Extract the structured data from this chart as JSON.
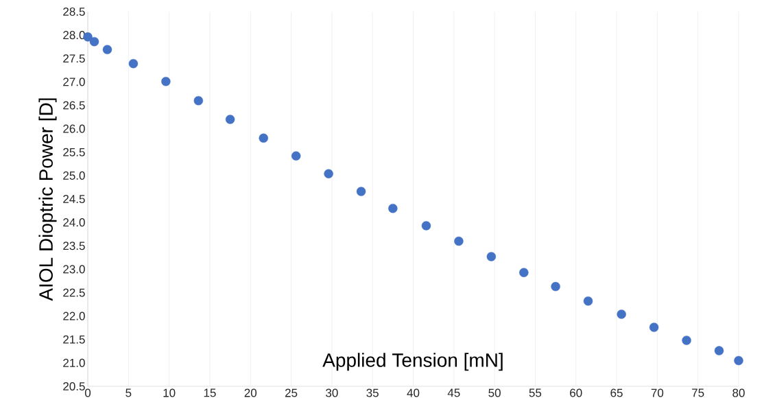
{
  "chart_data": {
    "type": "scatter",
    "xlabel": "Applied Tension [mN]",
    "ylabel": "AIOL Dioptric Power [D]",
    "x": [
      0,
      0.8,
      2.4,
      5.6,
      9.6,
      13.6,
      17.5,
      21.6,
      25.6,
      29.6,
      33.6,
      37.5,
      41.6,
      45.6,
      49.6,
      53.6,
      57.5,
      61.5,
      65.6,
      69.6,
      73.6,
      77.6,
      80
    ],
    "values": [
      27.96,
      27.86,
      27.69,
      27.39,
      27.01,
      26.6,
      26.2,
      25.8,
      25.42,
      25.04,
      24.66,
      24.3,
      23.93,
      23.6,
      23.27,
      22.93,
      22.63,
      22.32,
      22.04,
      21.76,
      21.48,
      21.26,
      21.05
    ],
    "color": "#4472c4",
    "marker": "circle",
    "xlim": [
      0,
      80
    ],
    "xticks": [
      0,
      5,
      10,
      15,
      20,
      25,
      30,
      35,
      40,
      45,
      50,
      55,
      60,
      65,
      70,
      75,
      80
    ],
    "ylim": [
      20.5,
      28.5
    ],
    "yticks": [
      20.5,
      {
        "value": 21,
        "label": "21.0"
      },
      21.5,
      {
        "value": 22,
        "label": "22.0"
      },
      22.5,
      {
        "value": 23,
        "label": "23.0"
      },
      23.5,
      {
        "value": 24,
        "label": "24.0"
      },
      24.5,
      {
        "value": 25,
        "label": "25.0"
      },
      25.5,
      {
        "value": 26,
        "label": "26.0"
      },
      26.5,
      {
        "value": 27,
        "label": "27.0"
      },
      27.5,
      {
        "value": 28,
        "label": "28.0"
      },
      28.5
    ],
    "grid": "x"
  }
}
